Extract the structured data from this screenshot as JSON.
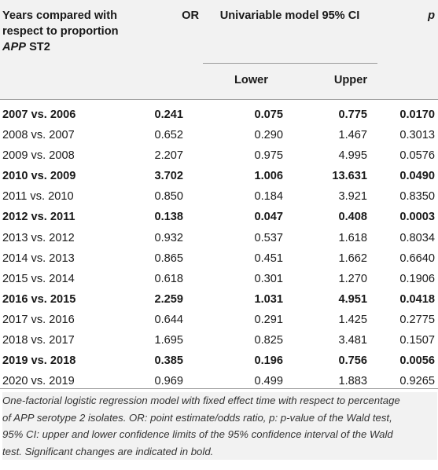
{
  "header": {
    "years_label_line1": "Years compared with",
    "years_label_line2": "respect to proportion",
    "years_label_line3_italic": "APP",
    "years_label_line3_rest": " ST2",
    "or_label": "OR",
    "ci_label": "Univariable model 95% CI",
    "p_label": "p",
    "lower_label": "Lower",
    "upper_label": "Upper"
  },
  "rows": [
    {
      "years": "2007 vs. 2006",
      "or": "0.241",
      "lower": "0.075",
      "upper": "0.775",
      "p": "0.0170",
      "significant": true
    },
    {
      "years": "2008 vs. 2007",
      "or": "0.652",
      "lower": "0.290",
      "upper": "1.467",
      "p": "0.3013",
      "significant": false
    },
    {
      "years": "2009 vs. 2008",
      "or": "2.207",
      "lower": "0.975",
      "upper": "4.995",
      "p": "0.0576",
      "significant": false
    },
    {
      "years": "2010 vs. 2009",
      "or": "3.702",
      "lower": "1.006",
      "upper": "13.631",
      "p": "0.0490",
      "significant": true
    },
    {
      "years": "2011 vs. 2010",
      "or": "0.850",
      "lower": "0.184",
      "upper": "3.921",
      "p": "0.8350",
      "significant": false
    },
    {
      "years": "2012 vs. 2011",
      "or": "0.138",
      "lower": "0.047",
      "upper": "0.408",
      "p": "0.0003",
      "significant": true
    },
    {
      "years": "2013 vs. 2012",
      "or": "0.932",
      "lower": "0.537",
      "upper": "1.618",
      "p": "0.8034",
      "significant": false
    },
    {
      "years": "2014 vs. 2013",
      "or": "0.865",
      "lower": "0.451",
      "upper": "1.662",
      "p": "0.6640",
      "significant": false
    },
    {
      "years": "2015 vs. 2014",
      "or": "0.618",
      "lower": "0.301",
      "upper": "1.270",
      "p": "0.1906",
      "significant": false
    },
    {
      "years": "2016 vs. 2015",
      "or": "2.259",
      "lower": "1.031",
      "upper": "4.951",
      "p": "0.0418",
      "significant": true
    },
    {
      "years": "2017 vs. 2016",
      "or": "0.644",
      "lower": "0.291",
      "upper": "1.425",
      "p": "0.2775",
      "significant": false
    },
    {
      "years": "2018 vs. 2017",
      "or": "1.695",
      "lower": "0.825",
      "upper": "3.481",
      "p": "0.1507",
      "significant": false
    },
    {
      "years": "2019 vs. 2018",
      "or": "0.385",
      "lower": "0.196",
      "upper": "0.756",
      "p": "0.0056",
      "significant": true
    },
    {
      "years": "2020 vs. 2019",
      "or": "0.969",
      "lower": "0.499",
      "upper": "1.883",
      "p": "0.9265",
      "significant": false
    }
  ],
  "footnote": {
    "line1": "One-factorial logistic regression model with fixed effect time with respect to percentage",
    "line2": "of APP serotype 2 isolates. OR: point estimate/odds ratio, p: p-value of the Wald test,",
    "line3": "95% CI: upper and lower confidence limits of the 95% confidence interval of the Wald",
    "line4": "test. Significant changes are indicated in bold."
  }
}
